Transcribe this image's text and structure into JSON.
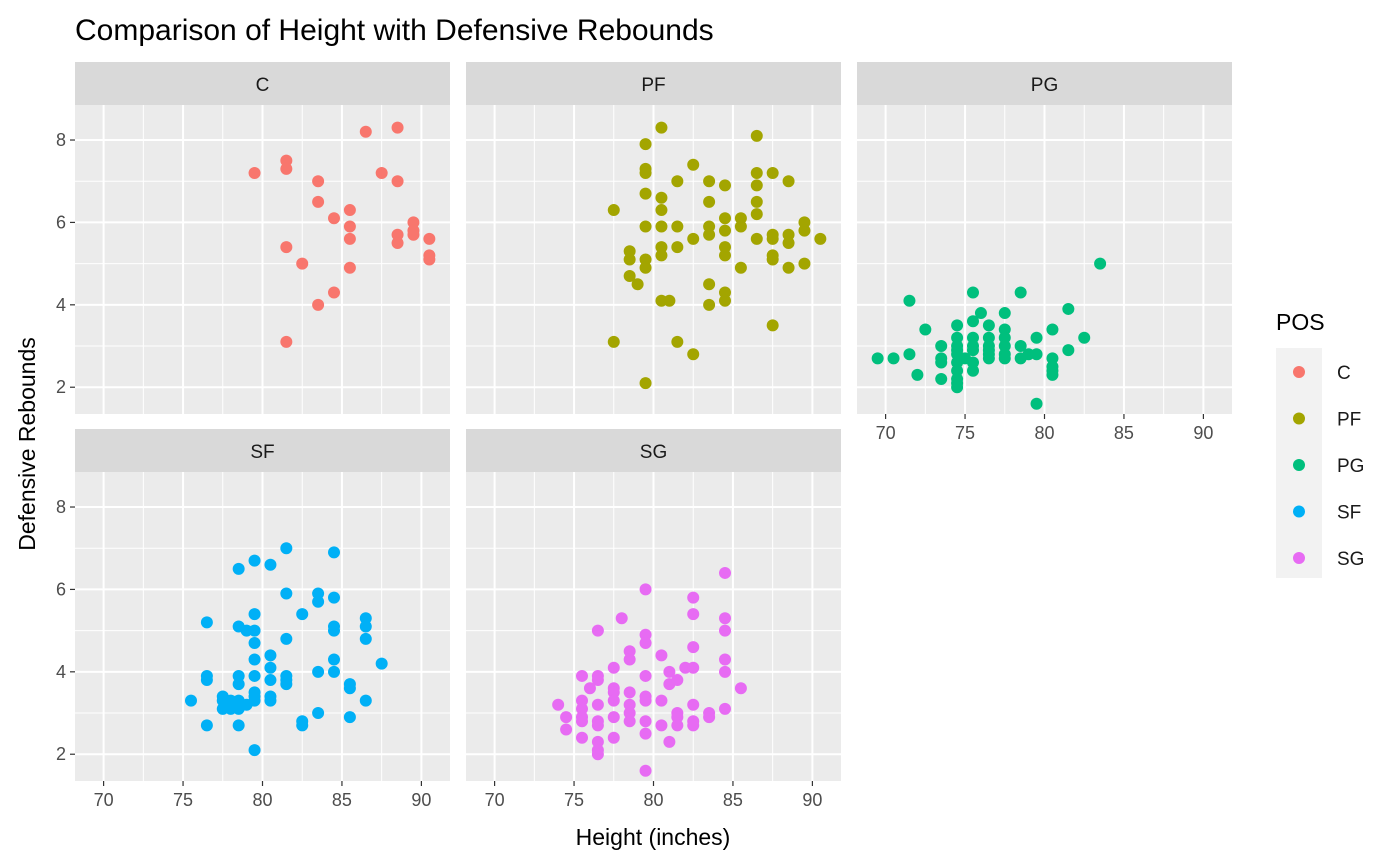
{
  "chart_data": {
    "type": "scatter",
    "title": "Comparison of Height with Defensive Rebounds",
    "xlabel": "Height (inches)",
    "ylabel": "Defensive Rebounds",
    "xlim": [
      68.2,
      91.8
    ],
    "ylim": [
      1.35,
      8.85
    ],
    "x_ticks": [
      70,
      75,
      80,
      85,
      90
    ],
    "y_ticks": [
      2,
      4,
      6,
      8
    ],
    "grid": true,
    "facet_by": "POS",
    "legend": {
      "title": "POS",
      "position": "right",
      "entries": [
        {
          "label": "C",
          "color": "#F8766D"
        },
        {
          "label": "PF",
          "color": "#A3A500"
        },
        {
          "label": "PG",
          "color": "#00BF7D"
        },
        {
          "label": "SF",
          "color": "#00B0F6"
        },
        {
          "label": "SG",
          "color": "#E76BF3"
        }
      ]
    },
    "facets": [
      {
        "label": "C",
        "color": "#F8766D",
        "points": [
          [
            79.5,
            7.2
          ],
          [
            81.5,
            7.5
          ],
          [
            81.5,
            7.3
          ],
          [
            81.5,
            5.4
          ],
          [
            81.5,
            3.1
          ],
          [
            82.5,
            5.0
          ],
          [
            83.5,
            7.0
          ],
          [
            83.5,
            6.5
          ],
          [
            83.5,
            4.0
          ],
          [
            84.5,
            6.1
          ],
          [
            84.5,
            4.3
          ],
          [
            85.5,
            6.3
          ],
          [
            85.5,
            5.9
          ],
          [
            85.5,
            5.6
          ],
          [
            85.5,
            4.9
          ],
          [
            86.5,
            8.2
          ],
          [
            87.5,
            7.2
          ],
          [
            88.5,
            8.3
          ],
          [
            88.5,
            7.0
          ],
          [
            88.5,
            5.7
          ],
          [
            88.5,
            5.5
          ],
          [
            89.5,
            6.0
          ],
          [
            89.5,
            5.8
          ],
          [
            89.5,
            5.7
          ],
          [
            90.5,
            5.6
          ],
          [
            90.5,
            5.2
          ],
          [
            90.5,
            5.1
          ]
        ]
      },
      {
        "label": "PF",
        "color": "#A3A500",
        "points": [
          [
            77.5,
            6.3
          ],
          [
            77.5,
            3.1
          ],
          [
            78.5,
            5.3
          ],
          [
            78.5,
            5.1
          ],
          [
            78.5,
            4.7
          ],
          [
            79.0,
            4.5
          ],
          [
            79.5,
            7.9
          ],
          [
            79.5,
            7.3
          ],
          [
            79.5,
            7.2
          ],
          [
            79.5,
            6.7
          ],
          [
            79.5,
            5.9
          ],
          [
            79.5,
            5.1
          ],
          [
            79.5,
            4.9
          ],
          [
            79.5,
            2.1
          ],
          [
            80.5,
            8.3
          ],
          [
            80.5,
            6.6
          ],
          [
            80.5,
            6.3
          ],
          [
            80.5,
            5.9
          ],
          [
            80.5,
            5.4
          ],
          [
            80.5,
            5.2
          ],
          [
            80.5,
            4.1
          ],
          [
            81.0,
            4.1
          ],
          [
            81.5,
            7.0
          ],
          [
            81.5,
            5.9
          ],
          [
            81.5,
            5.4
          ],
          [
            81.5,
            3.1
          ],
          [
            82.5,
            7.4
          ],
          [
            82.5,
            5.6
          ],
          [
            82.5,
            2.8
          ],
          [
            83.5,
            7.0
          ],
          [
            83.5,
            6.5
          ],
          [
            83.5,
            5.9
          ],
          [
            83.5,
            5.7
          ],
          [
            83.5,
            4.5
          ],
          [
            83.5,
            4.0
          ],
          [
            84.5,
            6.9
          ],
          [
            84.5,
            6.1
          ],
          [
            84.5,
            5.8
          ],
          [
            84.5,
            5.4
          ],
          [
            84.5,
            5.2
          ],
          [
            84.5,
            4.3
          ],
          [
            84.5,
            4.1
          ],
          [
            85.5,
            6.1
          ],
          [
            85.5,
            5.9
          ],
          [
            85.5,
            4.9
          ],
          [
            86.5,
            8.1
          ],
          [
            86.5,
            7.2
          ],
          [
            86.5,
            6.9
          ],
          [
            86.5,
            6.5
          ],
          [
            86.5,
            6.2
          ],
          [
            86.5,
            5.6
          ],
          [
            87.5,
            7.2
          ],
          [
            87.5,
            5.7
          ],
          [
            87.5,
            5.6
          ],
          [
            87.5,
            5.2
          ],
          [
            87.5,
            5.1
          ],
          [
            87.5,
            3.5
          ],
          [
            88.5,
            7.0
          ],
          [
            88.5,
            5.7
          ],
          [
            88.5,
            5.5
          ],
          [
            88.5,
            4.9
          ],
          [
            89.5,
            6.0
          ],
          [
            89.5,
            5.8
          ],
          [
            89.5,
            5.0
          ],
          [
            90.5,
            5.6
          ]
        ]
      },
      {
        "label": "PG",
        "color": "#00BF7D",
        "points": [
          [
            69.5,
            2.7
          ],
          [
            70.5,
            2.7
          ],
          [
            71.5,
            4.1
          ],
          [
            71.5,
            2.8
          ],
          [
            72.0,
            2.3
          ],
          [
            72.5,
            3.4
          ],
          [
            73.5,
            3.0
          ],
          [
            73.5,
            2.7
          ],
          [
            73.5,
            2.6
          ],
          [
            73.5,
            2.2
          ],
          [
            74.5,
            3.5
          ],
          [
            74.5,
            3.2
          ],
          [
            74.5,
            3.0
          ],
          [
            74.5,
            2.9
          ],
          [
            74.5,
            2.8
          ],
          [
            74.5,
            2.6
          ],
          [
            74.5,
            2.4
          ],
          [
            74.5,
            2.2
          ],
          [
            74.5,
            2.1
          ],
          [
            74.5,
            2.0
          ],
          [
            75.0,
            2.7
          ],
          [
            75.5,
            4.3
          ],
          [
            75.5,
            3.6
          ],
          [
            75.5,
            3.2
          ],
          [
            75.5,
            3.0
          ],
          [
            75.5,
            2.9
          ],
          [
            75.5,
            2.6
          ],
          [
            75.5,
            2.4
          ],
          [
            76.0,
            3.8
          ],
          [
            76.5,
            3.5
          ],
          [
            76.5,
            3.2
          ],
          [
            76.5,
            3.0
          ],
          [
            76.5,
            2.9
          ],
          [
            76.5,
            2.8
          ],
          [
            76.5,
            2.7
          ],
          [
            77.5,
            3.8
          ],
          [
            77.5,
            3.4
          ],
          [
            77.5,
            3.2
          ],
          [
            77.5,
            3.0
          ],
          [
            77.5,
            2.8
          ],
          [
            77.5,
            2.7
          ],
          [
            78.5,
            4.3
          ],
          [
            78.5,
            3.0
          ],
          [
            78.5,
            2.7
          ],
          [
            79.0,
            2.8
          ],
          [
            79.5,
            3.2
          ],
          [
            79.5,
            2.8
          ],
          [
            79.5,
            1.6
          ],
          [
            80.5,
            3.4
          ],
          [
            80.5,
            2.7
          ],
          [
            80.5,
            2.5
          ],
          [
            80.5,
            2.4
          ],
          [
            80.5,
            2.3
          ],
          [
            81.5,
            3.9
          ],
          [
            81.5,
            2.9
          ],
          [
            82.5,
            3.2
          ],
          [
            83.5,
            5.0
          ]
        ]
      },
      {
        "label": "SF",
        "color": "#00B0F6",
        "points": [
          [
            75.5,
            3.3
          ],
          [
            76.5,
            5.2
          ],
          [
            76.5,
            3.9
          ],
          [
            76.5,
            3.8
          ],
          [
            76.5,
            2.7
          ],
          [
            77.5,
            3.4
          ],
          [
            77.5,
            3.3
          ],
          [
            77.5,
            3.1
          ],
          [
            78.0,
            3.3
          ],
          [
            78.0,
            3.1
          ],
          [
            78.5,
            6.5
          ],
          [
            78.5,
            5.1
          ],
          [
            78.5,
            3.9
          ],
          [
            78.5,
            3.7
          ],
          [
            78.5,
            3.3
          ],
          [
            78.5,
            3.1
          ],
          [
            78.5,
            2.7
          ],
          [
            79.0,
            5.0
          ],
          [
            79.0,
            3.2
          ],
          [
            79.5,
            6.7
          ],
          [
            79.5,
            5.4
          ],
          [
            79.5,
            5.0
          ],
          [
            79.5,
            4.7
          ],
          [
            79.5,
            4.3
          ],
          [
            79.5,
            3.9
          ],
          [
            79.5,
            3.5
          ],
          [
            79.5,
            3.4
          ],
          [
            79.5,
            3.3
          ],
          [
            79.5,
            2.1
          ],
          [
            80.5,
            6.6
          ],
          [
            80.5,
            4.4
          ],
          [
            80.5,
            4.1
          ],
          [
            80.5,
            3.8
          ],
          [
            80.5,
            3.4
          ],
          [
            80.5,
            3.3
          ],
          [
            81.5,
            7.0
          ],
          [
            81.5,
            5.9
          ],
          [
            81.5,
            4.8
          ],
          [
            81.5,
            3.9
          ],
          [
            81.5,
            3.8
          ],
          [
            81.5,
            3.7
          ],
          [
            82.5,
            5.4
          ],
          [
            82.5,
            2.8
          ],
          [
            82.5,
            2.7
          ],
          [
            83.5,
            5.9
          ],
          [
            83.5,
            5.7
          ],
          [
            83.5,
            4.0
          ],
          [
            83.5,
            3.0
          ],
          [
            84.5,
            6.9
          ],
          [
            84.5,
            5.8
          ],
          [
            84.5,
            5.1
          ],
          [
            84.5,
            5.0
          ],
          [
            84.5,
            4.3
          ],
          [
            84.5,
            4.0
          ],
          [
            85.5,
            3.7
          ],
          [
            85.5,
            3.6
          ],
          [
            85.5,
            2.9
          ],
          [
            86.5,
            5.3
          ],
          [
            86.5,
            5.1
          ],
          [
            86.5,
            4.8
          ],
          [
            86.5,
            3.3
          ],
          [
            87.5,
            4.2
          ]
        ]
      },
      {
        "label": "SG",
        "color": "#E76BF3",
        "points": [
          [
            74.0,
            3.2
          ],
          [
            74.5,
            2.9
          ],
          [
            74.5,
            2.6
          ],
          [
            75.5,
            3.9
          ],
          [
            75.5,
            3.3
          ],
          [
            75.5,
            3.1
          ],
          [
            75.5,
            2.9
          ],
          [
            75.5,
            2.8
          ],
          [
            75.5,
            2.4
          ],
          [
            76.0,
            3.6
          ],
          [
            76.5,
            5.0
          ],
          [
            76.5,
            3.9
          ],
          [
            76.5,
            3.8
          ],
          [
            76.5,
            3.2
          ],
          [
            76.5,
            2.8
          ],
          [
            76.5,
            2.7
          ],
          [
            76.5,
            2.3
          ],
          [
            76.5,
            2.1
          ],
          [
            76.5,
            2.0
          ],
          [
            77.5,
            4.1
          ],
          [
            77.5,
            3.6
          ],
          [
            77.5,
            3.5
          ],
          [
            77.5,
            3.3
          ],
          [
            77.5,
            2.9
          ],
          [
            77.5,
            2.4
          ],
          [
            78.0,
            5.3
          ],
          [
            78.5,
            4.5
          ],
          [
            78.5,
            4.3
          ],
          [
            78.5,
            3.5
          ],
          [
            78.5,
            3.2
          ],
          [
            78.5,
            3.0
          ],
          [
            78.5,
            2.8
          ],
          [
            79.5,
            6.0
          ],
          [
            79.5,
            4.9
          ],
          [
            79.5,
            4.7
          ],
          [
            79.5,
            3.9
          ],
          [
            79.5,
            3.4
          ],
          [
            79.5,
            3.3
          ],
          [
            79.5,
            2.8
          ],
          [
            79.5,
            2.5
          ],
          [
            79.5,
            1.6
          ],
          [
            80.5,
            4.4
          ],
          [
            80.5,
            3.3
          ],
          [
            80.5,
            2.7
          ],
          [
            81.0,
            4.0
          ],
          [
            81.0,
            3.7
          ],
          [
            81.0,
            2.3
          ],
          [
            81.5,
            3.8
          ],
          [
            81.5,
            3.0
          ],
          [
            81.5,
            2.9
          ],
          [
            81.5,
            2.7
          ],
          [
            82.0,
            4.1
          ],
          [
            82.5,
            5.8
          ],
          [
            82.5,
            5.4
          ],
          [
            82.5,
            4.6
          ],
          [
            82.5,
            4.1
          ],
          [
            82.5,
            3.2
          ],
          [
            82.5,
            2.8
          ],
          [
            82.5,
            2.7
          ],
          [
            83.5,
            3.0
          ],
          [
            83.5,
            2.9
          ],
          [
            84.5,
            6.4
          ],
          [
            84.5,
            5.3
          ],
          [
            84.5,
            5.0
          ],
          [
            84.5,
            4.3
          ],
          [
            84.5,
            4.0
          ],
          [
            84.5,
            3.1
          ],
          [
            85.5,
            3.6
          ]
        ]
      }
    ]
  }
}
